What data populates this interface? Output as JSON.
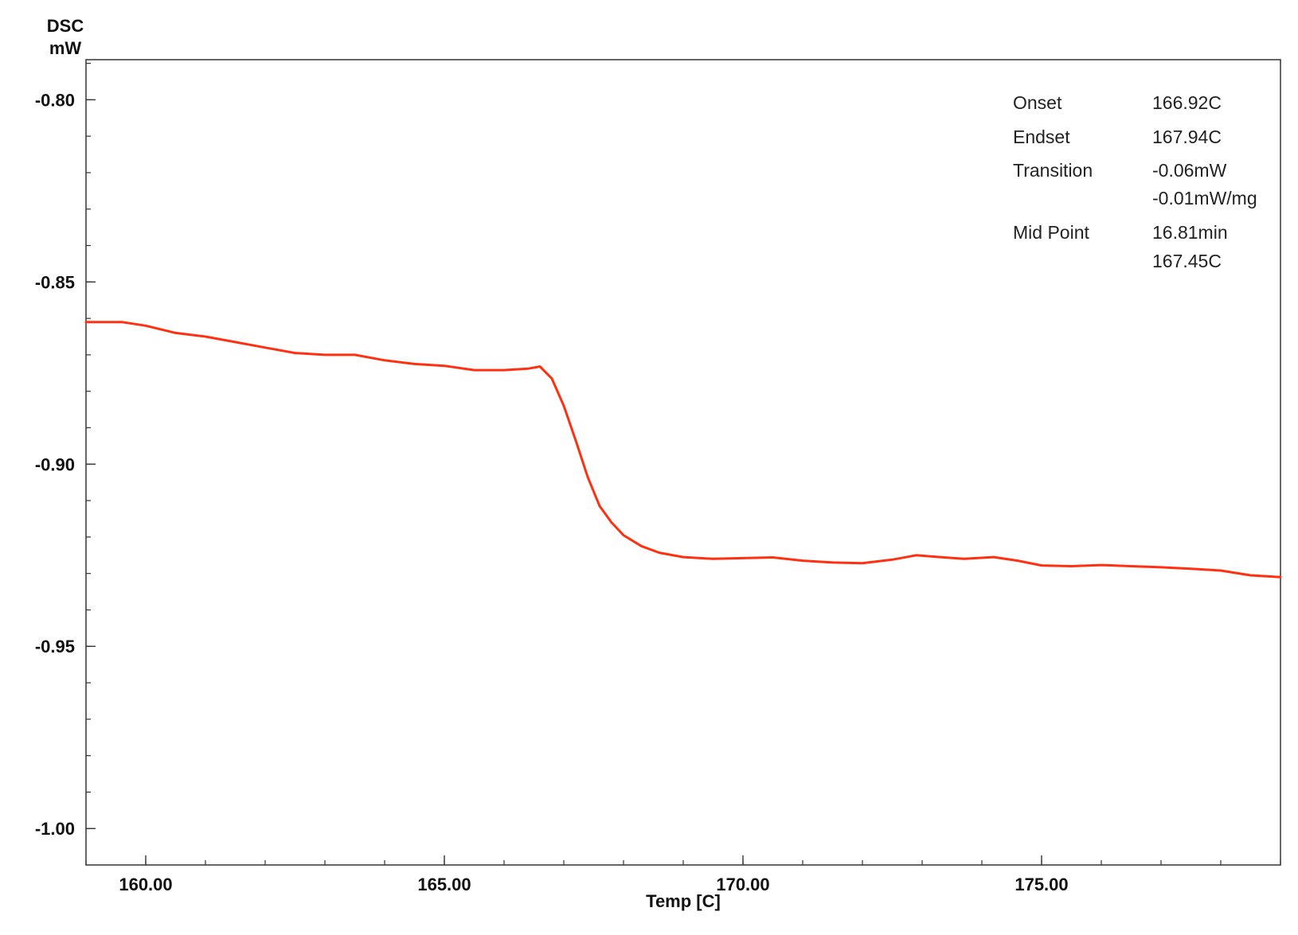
{
  "chart_data": {
    "type": "line",
    "title": "",
    "ylabel_line1": "DSC",
    "ylabel_line2": "mW",
    "xlabel": "Temp  [C]",
    "xlim": [
      159.0,
      179.0
    ],
    "ylim": [
      -1.01,
      -0.789
    ],
    "x_ticks": [
      160,
      165,
      170,
      175
    ],
    "x_tick_labels": [
      "160.00",
      "165.00",
      "170.00",
      "175.00"
    ],
    "x_minor_step": 1,
    "y_ticks": [
      -0.8,
      -0.85,
      -0.9,
      -0.95,
      -1.0
    ],
    "y_tick_labels": [
      "-0.80",
      "-0.85",
      "-0.90",
      "-0.95",
      "-1.00"
    ],
    "y_minor_step": 0.01,
    "grid": false,
    "series": [
      {
        "color": "#ff3010",
        "points": [
          [
            159.0,
            -0.861
          ],
          [
            159.6,
            -0.861
          ],
          [
            160.0,
            -0.862
          ],
          [
            160.5,
            -0.864
          ],
          [
            161.0,
            -0.865
          ],
          [
            161.5,
            -0.8665
          ],
          [
            162.0,
            -0.868
          ],
          [
            162.5,
            -0.8695
          ],
          [
            163.0,
            -0.87
          ],
          [
            163.5,
            -0.87
          ],
          [
            164.0,
            -0.8715
          ],
          [
            164.5,
            -0.8725
          ],
          [
            165.0,
            -0.873
          ],
          [
            165.5,
            -0.8742
          ],
          [
            166.0,
            -0.8742
          ],
          [
            166.4,
            -0.8738
          ],
          [
            166.6,
            -0.8732
          ],
          [
            166.8,
            -0.8765
          ],
          [
            167.0,
            -0.884
          ],
          [
            167.2,
            -0.8935
          ],
          [
            167.4,
            -0.9035
          ],
          [
            167.6,
            -0.9115
          ],
          [
            167.8,
            -0.916
          ],
          [
            168.0,
            -0.9195
          ],
          [
            168.3,
            -0.9225
          ],
          [
            168.6,
            -0.9243
          ],
          [
            169.0,
            -0.9255
          ],
          [
            169.5,
            -0.926
          ],
          [
            170.0,
            -0.9258
          ],
          [
            170.5,
            -0.9256
          ],
          [
            171.0,
            -0.9265
          ],
          [
            171.5,
            -0.927
          ],
          [
            172.0,
            -0.9272
          ],
          [
            172.5,
            -0.9262
          ],
          [
            172.9,
            -0.925
          ],
          [
            173.3,
            -0.9255
          ],
          [
            173.7,
            -0.926
          ],
          [
            174.2,
            -0.9255
          ],
          [
            174.6,
            -0.9265
          ],
          [
            175.0,
            -0.9278
          ],
          [
            175.5,
            -0.928
          ],
          [
            176.0,
            -0.9277
          ],
          [
            176.5,
            -0.928
          ],
          [
            177.0,
            -0.9283
          ],
          [
            177.5,
            -0.9287
          ],
          [
            178.0,
            -0.9292
          ],
          [
            178.5,
            -0.9305
          ],
          [
            179.0,
            -0.931
          ]
        ]
      }
    ],
    "annotation": {
      "rows": [
        {
          "label": "Onset",
          "value": "166.92C"
        },
        {
          "label": "Endset",
          "value": "167.94C"
        },
        {
          "label": "Transition",
          "value": "-0.06mW"
        },
        {
          "label": "",
          "value": "-0.01mW/mg"
        },
        {
          "label": "Mid Point",
          "value": "16.81min"
        },
        {
          "label": "",
          "value": "167.45C"
        }
      ]
    }
  }
}
